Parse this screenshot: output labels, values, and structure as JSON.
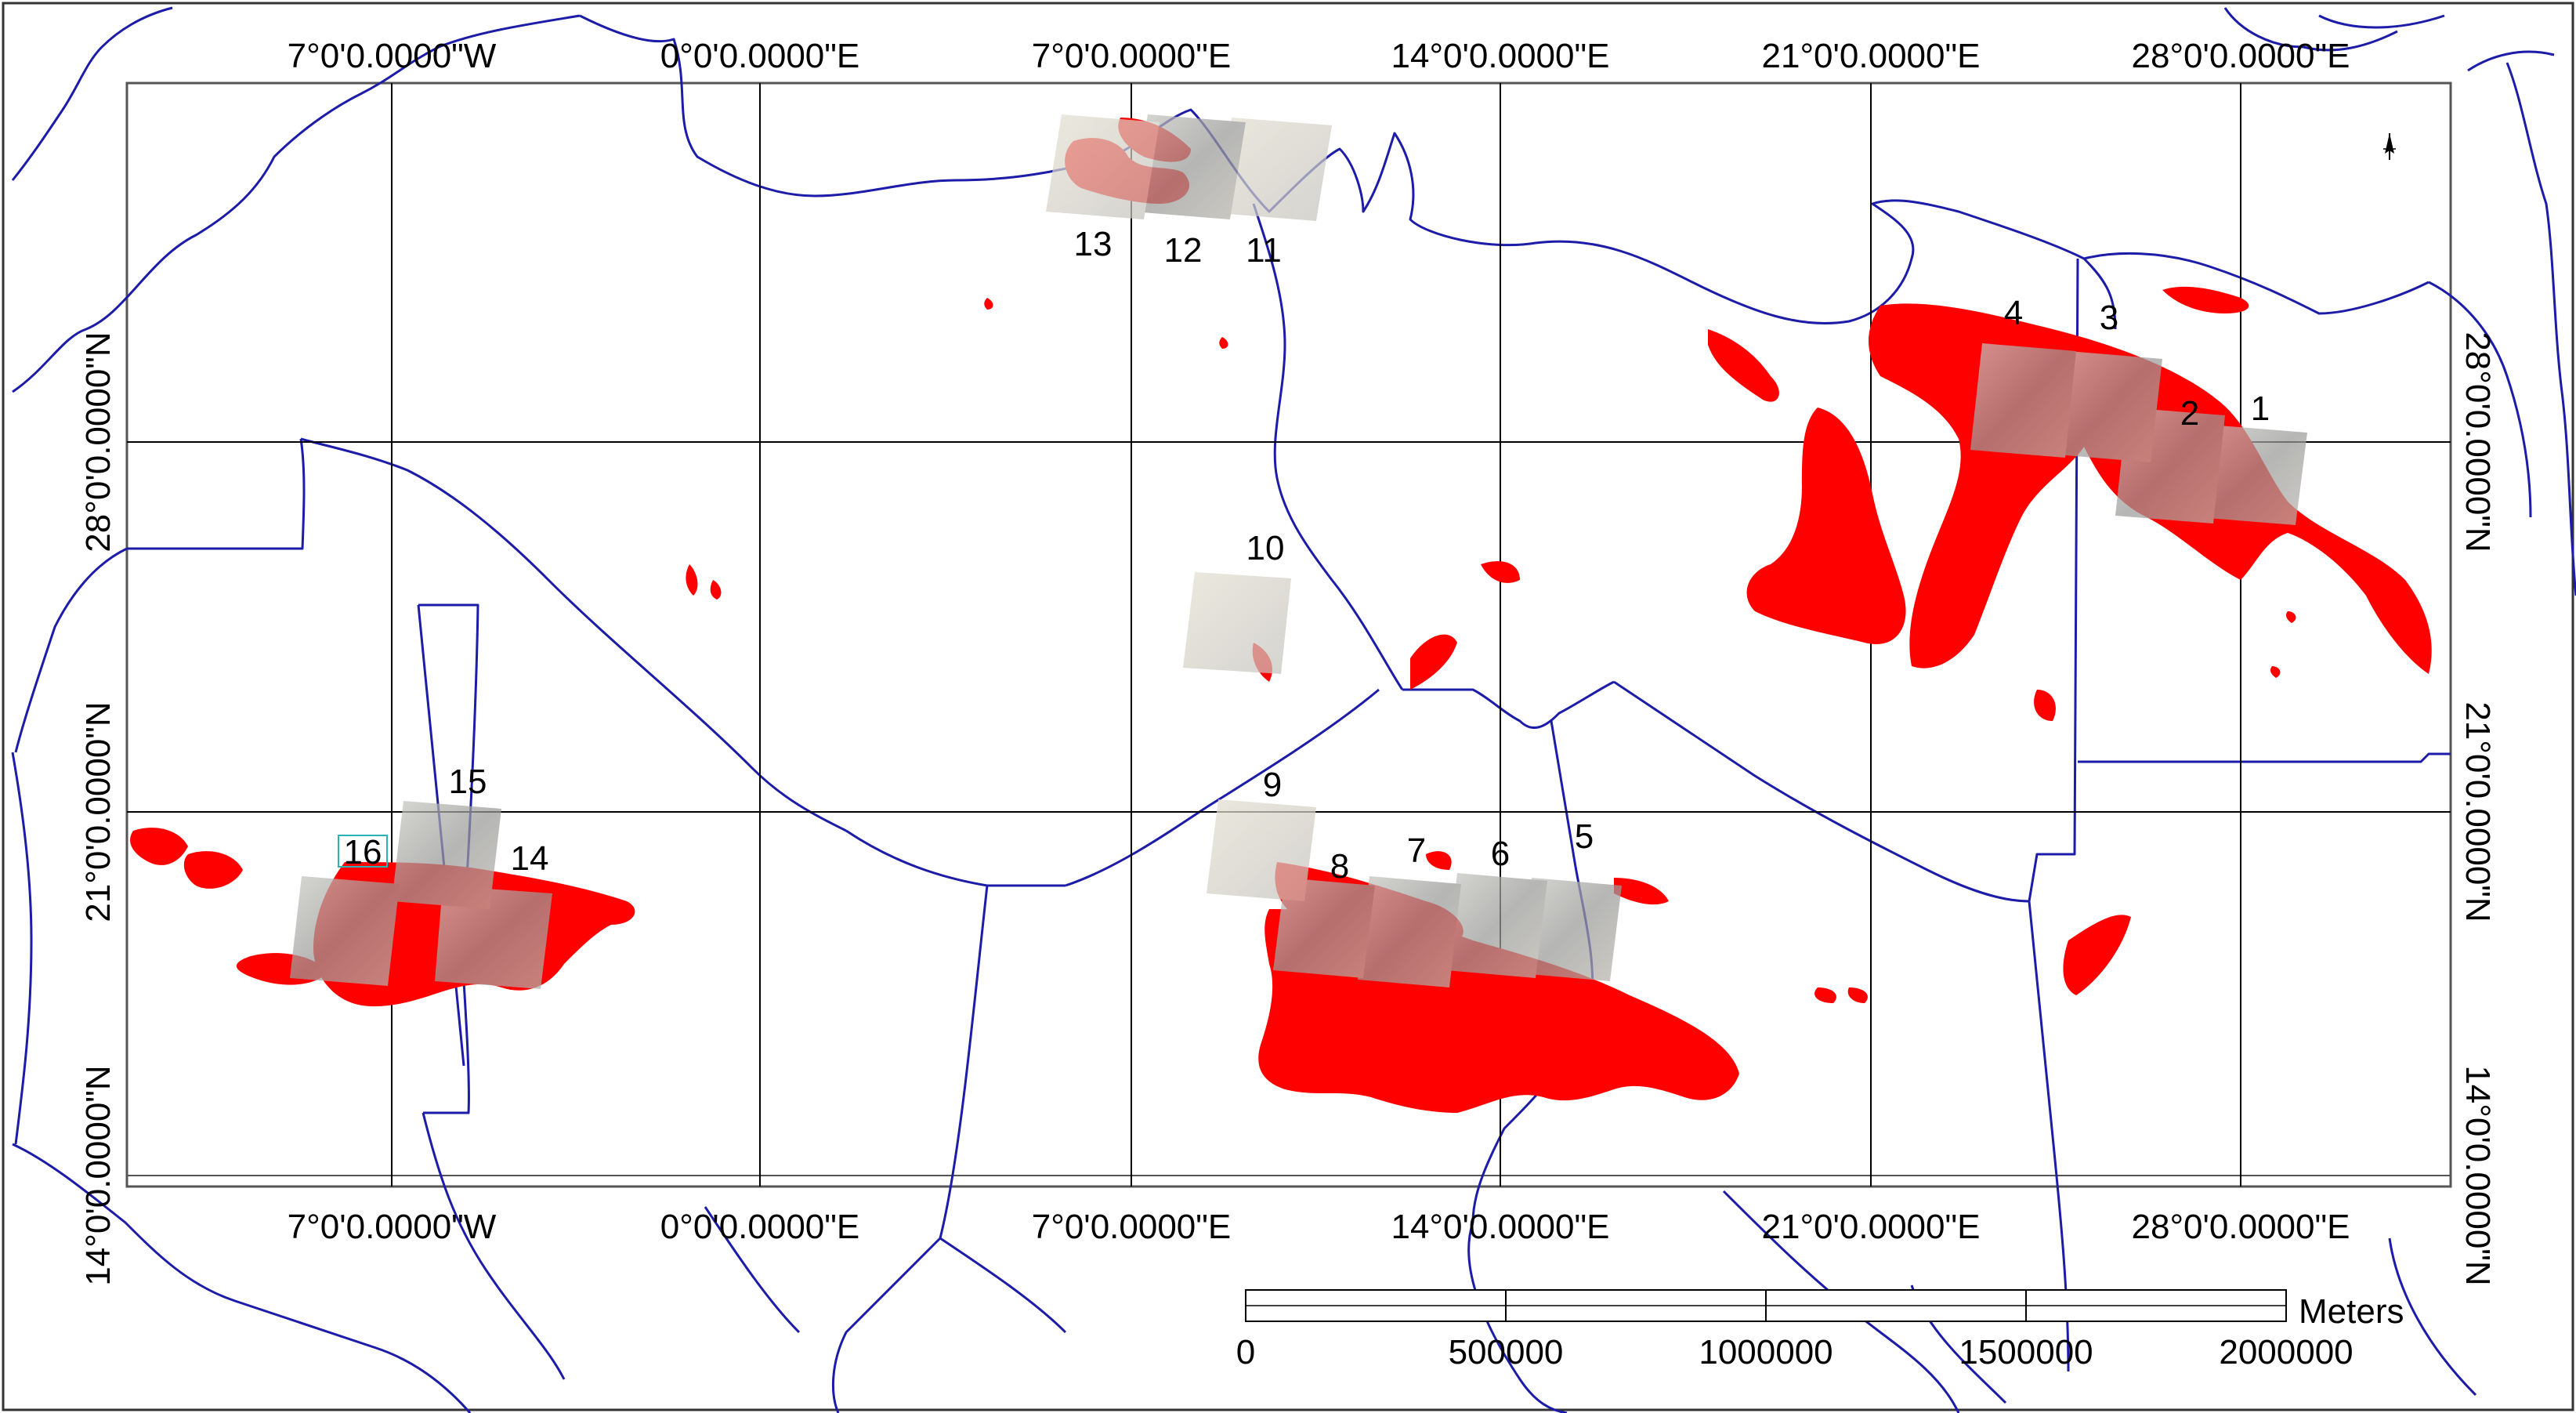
{
  "map": {
    "colors": {
      "background": "#ffffff",
      "boundary": "#1c1ca8",
      "graticule": "#000000",
      "detection": "#ff0000",
      "scene": "#a9a9a9",
      "highlight_box": "#2ab3b3"
    },
    "north_arrow_icon": "north-arrow-icon",
    "lon_labels_top": [
      "7°0'0.0000\"W",
      "0°0'0.0000\"E",
      "7°0'0.0000\"E",
      "14°0'0.0000\"E",
      "21°0'0.0000\"E",
      "28°0'0.0000\"E"
    ],
    "lon_labels_bottom": [
      "7°0'0.0000\"W",
      "0°0'0.0000\"E",
      "7°0'0.0000\"E",
      "14°0'0.0000\"E",
      "21°0'0.0000\"E",
      "28°0'0.0000\"E"
    ],
    "lat_labels_left": [
      "28°0'0.0000\"N",
      "21°0'0.0000\"N",
      "14°0'0.0000\"N"
    ],
    "lat_labels_right": [
      "28°0'0.0000\"N",
      "21°0'0.0000\"N",
      "14°0'0.0000\"N"
    ],
    "scene_labels": [
      "1",
      "2",
      "3",
      "4",
      "5",
      "6",
      "7",
      "8",
      "9",
      "10",
      "11",
      "12",
      "13",
      "14",
      "15",
      "16"
    ],
    "highlighted_scene": "16",
    "scale_bar": {
      "unit": "Meters",
      "ticks": [
        "0",
        "500000",
        "1000000",
        "1500000",
        "2000000"
      ]
    }
  }
}
